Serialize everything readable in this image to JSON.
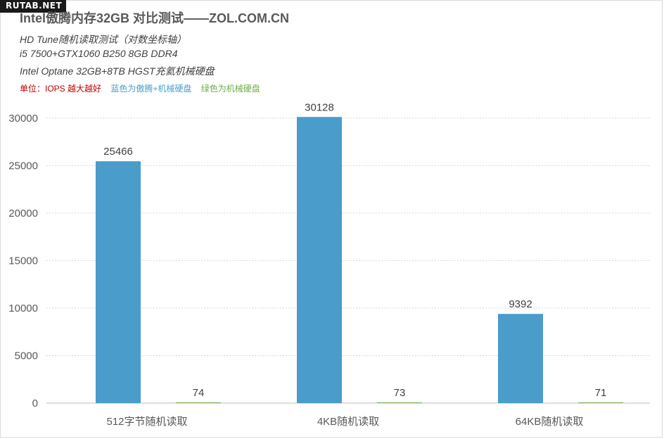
{
  "watermark": "RUTAB.NET",
  "header": {
    "title": "Intel傲腾内存32GB 对比测试——ZOL.COM.CN",
    "subtitle_lines": [
      "HD Tune随机读取测试（对数坐标轴）",
      "i5 7500+GTX1060 B250 8GB DDR4",
      "Intel Optane 32GB+8TB HGST充氦机械硬盘"
    ],
    "notes": [
      {
        "text": "单位：IOPS 越大越好",
        "color": "#c00000"
      },
      {
        "text": "蓝色为傲腾+机械硬盘",
        "color": "#4aa0cc"
      },
      {
        "text": "绿色为机械硬盘",
        "color": "#70ad47"
      }
    ]
  },
  "chart_data": {
    "type": "bar",
    "categories": [
      "512字节随机读取",
      "4KB随机读取",
      "64KB随机读取"
    ],
    "series": [
      {
        "values": [
          25466,
          30128,
          9392
        ],
        "color": "#4a9ccb"
      },
      {
        "values": [
          74,
          73,
          71
        ],
        "color": "#70ad47"
      }
    ],
    "ylim": [
      0,
      30000
    ],
    "yticks": [
      0,
      5000,
      10000,
      15000,
      20000,
      25000,
      30000
    ],
    "grid": true,
    "data_labels": true
  }
}
